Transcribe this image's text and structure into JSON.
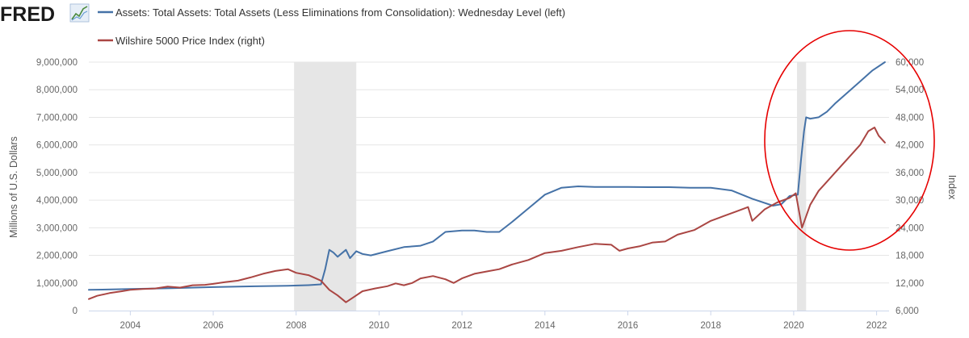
{
  "logo": {
    "text": "FRED"
  },
  "chart_data": {
    "type": "line",
    "x_ticks": [
      "2004",
      "2006",
      "2008",
      "2010",
      "2012",
      "2014",
      "2016",
      "2018",
      "2020",
      "2022"
    ],
    "x_range": [
      2003.0,
      2022.3
    ],
    "y_left": {
      "label": "Millions of U.S. Dollars",
      "range": [
        0,
        9000000
      ],
      "ticks": [
        "0",
        "1,000,000",
        "2,000,000",
        "3,000,000",
        "4,000,000",
        "5,000,000",
        "6,000,000",
        "7,000,000",
        "8,000,000",
        "9,000,000"
      ]
    },
    "y_right": {
      "label": "Index",
      "range": [
        6000,
        60000
      ],
      "ticks": [
        "6,000",
        "12,000",
        "18,000",
        "24,000",
        "30,000",
        "36,000",
        "42,000",
        "48,000",
        "54,000",
        "60,000"
      ]
    },
    "recessions": [
      [
        2007.95,
        2009.45
      ],
      [
        2020.08,
        2020.3
      ]
    ],
    "series": [
      {
        "name": "Assets: Total Assets: Total Assets (Less Eliminations from Consolidation): Wednesday Level (left)",
        "axis": "left",
        "color": "#4572a7",
        "x": [
          2003.0,
          2004.0,
          2005.0,
          2006.0,
          2007.0,
          2007.8,
          2008.3,
          2008.6,
          2008.7,
          2008.8,
          2008.9,
          2009.0,
          2009.2,
          2009.3,
          2009.45,
          2009.6,
          2009.8,
          2010.2,
          2010.6,
          2011.0,
          2011.3,
          2011.6,
          2012.0,
          2012.3,
          2012.6,
          2012.9,
          2013.2,
          2013.6,
          2014.0,
          2014.4,
          2014.8,
          2015.2,
          2015.6,
          2016.0,
          2016.5,
          2017.0,
          2017.5,
          2018.0,
          2018.5,
          2019.0,
          2019.5,
          2019.7,
          2019.9,
          2020.1,
          2020.18,
          2020.25,
          2020.3,
          2020.4,
          2020.6,
          2020.8,
          2021.0,
          2021.3,
          2021.6,
          2021.9,
          2022.2
        ],
        "values": [
          750000,
          780000,
          810000,
          850000,
          880000,
          900000,
          920000,
          950000,
          1500000,
          2200000,
          2100000,
          1950000,
          2200000,
          1900000,
          2150000,
          2050000,
          2000000,
          2150000,
          2300000,
          2350000,
          2500000,
          2850000,
          2900000,
          2900000,
          2850000,
          2850000,
          3200000,
          3700000,
          4200000,
          4450000,
          4500000,
          4480000,
          4480000,
          4480000,
          4470000,
          4470000,
          4450000,
          4450000,
          4350000,
          4050000,
          3800000,
          3850000,
          4150000,
          4200000,
          5500000,
          6500000,
          7000000,
          6950000,
          7000000,
          7200000,
          7500000,
          7900000,
          8300000,
          8700000,
          9000000
        ]
      },
      {
        "name": "Wilshire 5000 Price Index (right)",
        "axis": "right",
        "color": "#aa4643",
        "x": [
          2003.0,
          2003.2,
          2003.5,
          2003.8,
          2004.0,
          2004.3,
          2004.6,
          2004.9,
          2005.2,
          2005.5,
          2005.8,
          2006.0,
          2006.3,
          2006.6,
          2006.9,
          2007.2,
          2007.5,
          2007.8,
          2008.0,
          2008.3,
          2008.6,
          2008.8,
          2009.0,
          2009.2,
          2009.4,
          2009.6,
          2009.9,
          2010.2,
          2010.4,
          2010.6,
          2010.8,
          2011.0,
          2011.3,
          2011.6,
          2011.8,
          2012.0,
          2012.3,
          2012.6,
          2012.9,
          2013.2,
          2013.6,
          2014.0,
          2014.4,
          2014.8,
          2015.2,
          2015.6,
          2015.8,
          2016.0,
          2016.3,
          2016.6,
          2016.9,
          2017.2,
          2017.6,
          2018.0,
          2018.3,
          2018.6,
          2018.9,
          2019.0,
          2019.3,
          2019.6,
          2019.9,
          2020.05,
          2020.2,
          2020.4,
          2020.6,
          2020.8,
          2021.0,
          2021.3,
          2021.6,
          2021.8,
          2021.95,
          2022.05,
          2022.2
        ],
        "values": [
          8500,
          9200,
          9800,
          10200,
          10500,
          10700,
          10800,
          11200,
          11000,
          11500,
          11600,
          11800,
          12200,
          12500,
          13200,
          14000,
          14600,
          15000,
          14200,
          13700,
          12500,
          10500,
          9300,
          7800,
          9000,
          10200,
          10800,
          11300,
          11900,
          11500,
          12000,
          13000,
          13500,
          12800,
          12000,
          13000,
          14000,
          14500,
          15000,
          16000,
          17000,
          18500,
          19000,
          19800,
          20500,
          20300,
          19000,
          19500,
          20000,
          20800,
          21000,
          22500,
          23500,
          25500,
          26500,
          27500,
          28500,
          25500,
          28000,
          29500,
          30500,
          31500,
          24000,
          29000,
          32000,
          34000,
          36000,
          39000,
          42000,
          45000,
          45800,
          44000,
          42500
        ]
      }
    ]
  }
}
